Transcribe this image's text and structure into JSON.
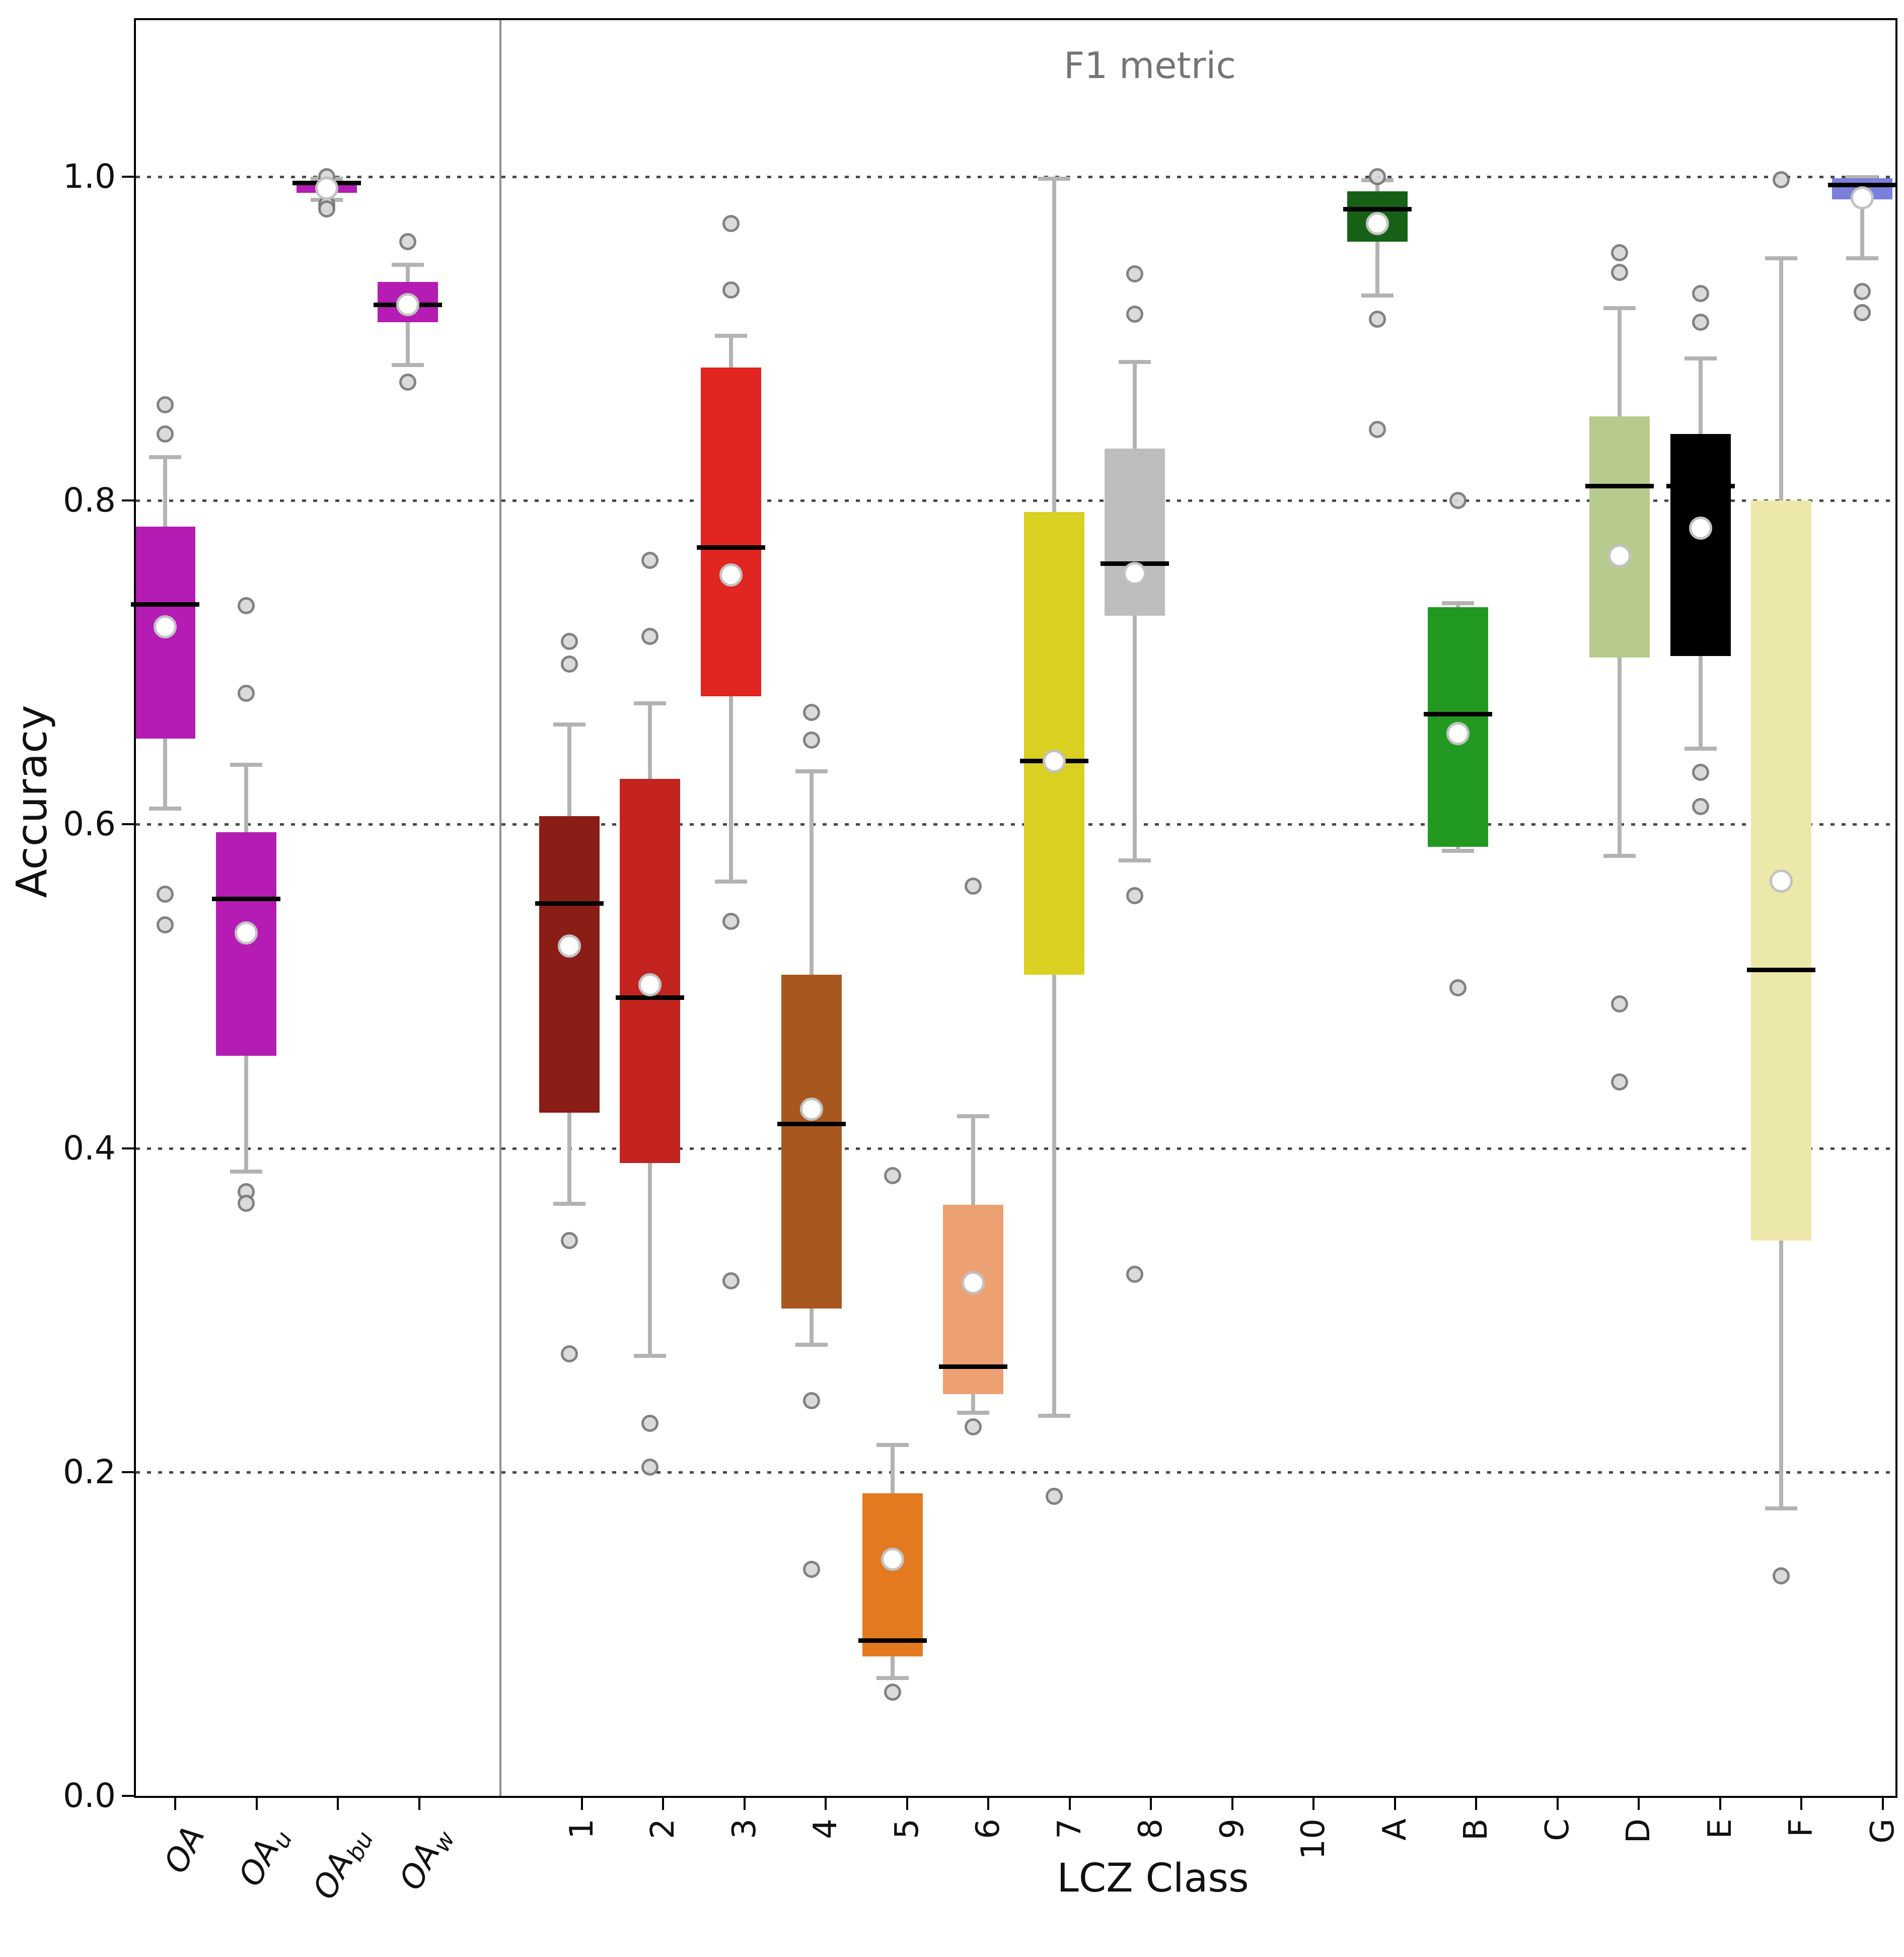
{
  "chart_data": {
    "type": "boxplot",
    "title": "F1 metric",
    "xlabel": "LCZ Class",
    "ylabel": "Accuracy",
    "ylim": [
      0.0,
      1.09
    ],
    "grid": "horizontal-dotted",
    "legend": "none",
    "yticks": [
      {
        "label": "0.0",
        "value": 0.0
      },
      {
        "label": "0.2",
        "value": 0.2
      },
      {
        "label": "0.4",
        "value": 0.4
      },
      {
        "label": "0.6",
        "value": 0.6
      },
      {
        "label": "0.8",
        "value": 0.8
      },
      {
        "label": "1.0",
        "value": 1.0
      }
    ],
    "panel_divider_after": "OAw",
    "style": {
      "median_color": "#000000",
      "whisker_color": "#b3b3b3",
      "flier_edge_color": "#787878",
      "flier_fill_color": "#d9d9d9",
      "mean_fill_color": "#ffffff",
      "mean_edge_color": "#c2c2c2",
      "grid_color": "#4a4a4a",
      "title_color": "#757575",
      "separator_color": "#8f8f8f"
    },
    "categories": [
      {
        "label": "OA",
        "sub": "",
        "color": "#b41cb4",
        "stats": {
          "whislo": 0.61,
          "q1": 0.653,
          "med": 0.736,
          "q3": 0.784,
          "whishi": 0.827,
          "mean": 0.722
        },
        "fliers": [
          0.859,
          0.841,
          0.557,
          0.538
        ]
      },
      {
        "label": "OA",
        "sub": "u",
        "color": "#b41cb4",
        "stats": {
          "whislo": 0.386,
          "q1": 0.457,
          "med": 0.554,
          "q3": 0.595,
          "whishi": 0.637,
          "mean": 0.533
        },
        "fliers": [
          0.735,
          0.681,
          0.373,
          0.366
        ]
      },
      {
        "label": "OA",
        "sub": "bu",
        "color": "#b41cb4",
        "stats": {
          "whislo": 0.986,
          "q1": 0.99,
          "med": 0.996,
          "q3": 0.997,
          "whishi": 0.999,
          "mean": 0.993
        },
        "fliers": [
          1.0,
          0.983,
          0.98
        ]
      },
      {
        "label": "OA",
        "sub": "w",
        "color": "#b41cb4",
        "stats": {
          "whislo": 0.884,
          "q1": 0.91,
          "med": 0.921,
          "q3": 0.935,
          "whishi": 0.946,
          "mean": 0.921
        },
        "fliers": [
          0.96,
          0.873
        ]
      },
      {
        "label": "1",
        "sub": "",
        "color": "#8b1d17",
        "stats": {
          "whislo": 0.366,
          "q1": 0.422,
          "med": 0.551,
          "q3": 0.605,
          "whishi": 0.662,
          "mean": 0.525
        },
        "fliers": [
          0.713,
          0.699,
          0.343,
          0.273
        ]
      },
      {
        "label": "2",
        "sub": "",
        "color": "#c32420",
        "stats": {
          "whislo": 0.272,
          "q1": 0.391,
          "med": 0.493,
          "q3": 0.628,
          "whishi": 0.675,
          "mean": 0.501
        },
        "fliers": [
          0.763,
          0.716,
          0.23,
          0.203
        ]
      },
      {
        "label": "3",
        "sub": "",
        "color": "#e12520",
        "stats": {
          "whislo": 0.565,
          "q1": 0.679,
          "med": 0.771,
          "q3": 0.882,
          "whishi": 0.902,
          "mean": 0.754
        },
        "fliers": [
          0.971,
          0.93,
          0.54,
          0.318
        ]
      },
      {
        "label": "4",
        "sub": "",
        "color": "#a8581f",
        "stats": {
          "whislo": 0.279,
          "q1": 0.301,
          "med": 0.415,
          "q3": 0.507,
          "whishi": 0.633,
          "mean": 0.424
        },
        "fliers": [
          0.669,
          0.652,
          0.244,
          0.14
        ]
      },
      {
        "label": "5",
        "sub": "",
        "color": "#e47a20",
        "stats": {
          "whislo": 0.073,
          "q1": 0.086,
          "med": 0.096,
          "q3": 0.187,
          "whishi": 0.217,
          "mean": 0.146
        },
        "fliers": [
          0.383,
          0.064
        ]
      },
      {
        "label": "6",
        "sub": "",
        "color": "#eda173",
        "stats": {
          "whislo": 0.237,
          "q1": 0.248,
          "med": 0.265,
          "q3": 0.365,
          "whishi": 0.42,
          "mean": 0.317
        },
        "fliers": [
          0.562,
          0.228
        ]
      },
      {
        "label": "7",
        "sub": "",
        "color": "#d9d021",
        "stats": {
          "whislo": 0.235,
          "q1": 0.507,
          "med": 0.639,
          "q3": 0.793,
          "whishi": 0.999,
          "mean": 0.639
        },
        "fliers": [
          0.185
        ]
      },
      {
        "label": "8",
        "sub": "",
        "color": "#bdbdbd",
        "stats": {
          "whislo": 0.578,
          "q1": 0.729,
          "med": 0.761,
          "q3": 0.832,
          "whishi": 0.886,
          "mean": 0.755
        },
        "fliers": [
          0.94,
          0.915,
          0.556,
          0.322
        ]
      },
      {
        "label": "9",
        "sub": "",
        "empty": true
      },
      {
        "label": "10",
        "sub": "",
        "empty": true
      },
      {
        "label": "A",
        "sub": "",
        "color": "#176117",
        "stats": {
          "whislo": 0.927,
          "q1": 0.96,
          "med": 0.98,
          "q3": 0.991,
          "whishi": 0.998,
          "mean": 0.971
        },
        "fliers": [
          1.0,
          0.912,
          0.844
        ]
      },
      {
        "label": "B",
        "sub": "",
        "color": "#229a22",
        "stats": {
          "whislo": 0.584,
          "q1": 0.586,
          "med": 0.668,
          "q3": 0.734,
          "whishi": 0.737,
          "mean": 0.656
        },
        "fliers": [
          0.8,
          0.499
        ]
      },
      {
        "label": "C",
        "sub": "",
        "empty": true
      },
      {
        "label": "D",
        "sub": "",
        "color": "#b6cb8d",
        "stats": {
          "whislo": 0.581,
          "q1": 0.703,
          "med": 0.809,
          "q3": 0.852,
          "whishi": 0.919,
          "mean": 0.766
        },
        "fliers": [
          0.953,
          0.941,
          0.489,
          0.441
        ]
      },
      {
        "label": "E",
        "sub": "",
        "color": "#000000",
        "stats": {
          "whislo": 0.647,
          "q1": 0.704,
          "med": 0.809,
          "q3": 0.841,
          "whishi": 0.888,
          "mean": 0.783
        },
        "fliers": [
          0.928,
          0.91,
          0.632,
          0.611
        ]
      },
      {
        "label": "F",
        "sub": "",
        "color": "#ece8a9",
        "stats": {
          "whislo": 0.178,
          "q1": 0.343,
          "med": 0.51,
          "q3": 0.8,
          "whishi": 0.95,
          "mean": 0.565
        },
        "fliers": [
          0.998,
          0.136
        ]
      },
      {
        "label": "G",
        "sub": "",
        "color": "#7b80dc",
        "stats": {
          "whislo": 0.95,
          "q1": 0.986,
          "med": 0.995,
          "q3": 0.999,
          "whishi": 1.0,
          "mean": 0.987
        },
        "fliers": [
          0.929,
          0.916
        ]
      }
    ]
  }
}
